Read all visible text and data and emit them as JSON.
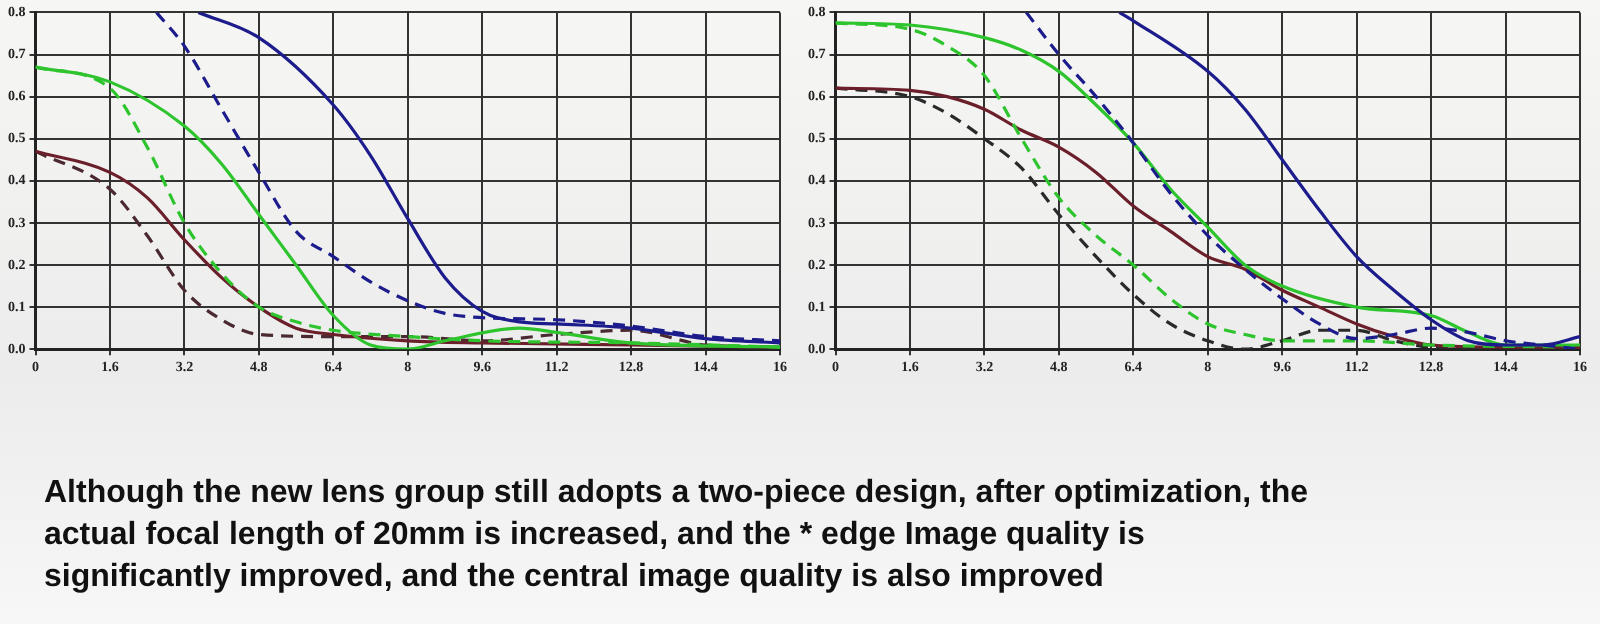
{
  "chart_data": [
    {
      "type": "line",
      "xlim": [
        0,
        16
      ],
      "xticks": [
        {
          "value": 0,
          "label": "0"
        },
        {
          "value": 1.6,
          "label": "1.6"
        },
        {
          "value": 3.2,
          "label": "3.2"
        },
        {
          "value": 4.8,
          "label": "4.8"
        },
        {
          "value": 6.4,
          "label": "6.4"
        },
        {
          "value": 8,
          "label": "8"
        },
        {
          "value": 9.6,
          "label": "9.6"
        },
        {
          "value": 11.2,
          "label": "11.2"
        },
        {
          "value": 12.8,
          "label": "12.8"
        },
        {
          "value": 14.4,
          "label": "14.4"
        },
        {
          "value": 16,
          "label": "16"
        }
      ],
      "ylim": [
        0,
        0.8
      ],
      "yticks": [
        {
          "value": 0,
          "label": "0.0"
        },
        {
          "value": 0.1,
          "label": "0.1"
        },
        {
          "value": 0.2,
          "label": "0.2"
        },
        {
          "value": 0.3,
          "label": "0.3"
        },
        {
          "value": 0.4,
          "label": "0.4"
        },
        {
          "value": 0.5,
          "label": "0.5"
        },
        {
          "value": 0.6,
          "label": "0.6"
        },
        {
          "value": 0.7,
          "label": "0.7"
        },
        {
          "value": 0.8,
          "label": "0.8"
        }
      ],
      "grid": true,
      "legend": false,
      "marker": "none",
      "series": [
        {
          "color": "#1c1c8c",
          "line_style": "solid",
          "x": [
            3.5,
            4.8,
            6.4,
            7.2,
            8,
            8.8,
            9.6,
            10.4,
            11.2,
            12.8,
            14.4,
            16
          ],
          "values": [
            0.8,
            0.74,
            0.58,
            0.46,
            0.31,
            0.17,
            0.09,
            0.065,
            0.06,
            0.05,
            0.025,
            0.015
          ]
        },
        {
          "color": "#1c1c8c",
          "line_style": "dashed",
          "x": [
            2.6,
            3.2,
            4.0,
            4.8,
            5.6,
            6.4,
            7.2,
            8,
            8.8,
            9.6,
            11.2,
            12.8,
            14.4,
            16
          ],
          "values": [
            0.8,
            0.72,
            0.57,
            0.42,
            0.28,
            0.22,
            0.16,
            0.115,
            0.085,
            0.075,
            0.07,
            0.055,
            0.03,
            0.02
          ]
        },
        {
          "color": "#2ec42e",
          "line_style": "solid",
          "x": [
            0,
            1.6,
            3.2,
            4.0,
            4.8,
            5.6,
            6.4,
            7.2,
            8,
            8.8,
            10.4,
            11.2,
            12.8,
            16
          ],
          "values": [
            0.67,
            0.635,
            0.53,
            0.44,
            0.32,
            0.2,
            0.08,
            0.01,
            0,
            0.02,
            0.05,
            0.04,
            0.015,
            0.005
          ]
        },
        {
          "color": "#2ec42e",
          "line_style": "dashed",
          "x": [
            0,
            1.6,
            2.4,
            3.2,
            4.0,
            4.8,
            5.6,
            6.4,
            8,
            9.6,
            12.8,
            16
          ],
          "values": [
            0.67,
            0.62,
            0.48,
            0.3,
            0.18,
            0.1,
            0.065,
            0.045,
            0.03,
            0.02,
            0.015,
            0.005
          ]
        },
        {
          "color": "#6b1f2a",
          "line_style": "solid",
          "x": [
            0,
            1.6,
            2.4,
            3.2,
            4.0,
            4.8,
            5.6,
            6.4,
            8,
            9.6,
            12.8,
            16
          ],
          "values": [
            0.47,
            0.42,
            0.36,
            0.26,
            0.17,
            0.1,
            0.05,
            0.035,
            0.02,
            0.015,
            0.01,
            0.005
          ]
        },
        {
          "color": "#4a2a30",
          "line_style": "dashed",
          "x": [
            0,
            1.6,
            2.4,
            3.2,
            4.0,
            4.8,
            6.4,
            8,
            9.6,
            11.2,
            12.8,
            14.4,
            16
          ],
          "values": [
            0.47,
            0.38,
            0.27,
            0.14,
            0.07,
            0.035,
            0.03,
            0.03,
            0.02,
            0.035,
            0.045,
            0.01,
            0.005
          ]
        }
      ],
      "annotations": [
        "Although the new lens group still adopts a two-piece design, after optimization, the actual focal length of 20mm is increased, and the * edge Image quality is significantly improved, and the central image quality is also improved"
      ]
    },
    {
      "type": "line",
      "xlim": [
        0,
        16
      ],
      "xticks": [
        {
          "value": 0,
          "label": "0"
        },
        {
          "value": 1.6,
          "label": "1.6"
        },
        {
          "value": 3.2,
          "label": "3.2"
        },
        {
          "value": 4.8,
          "label": "4.8"
        },
        {
          "value": 6.4,
          "label": "6.4"
        },
        {
          "value": 8,
          "label": "8"
        },
        {
          "value": 9.6,
          "label": "9.6"
        },
        {
          "value": 11.2,
          "label": "11.2"
        },
        {
          "value": 12.8,
          "label": "12.8"
        },
        {
          "value": 14.4,
          "label": "14.4"
        },
        {
          "value": 16,
          "label": "16"
        }
      ],
      "ylim": [
        0,
        0.8
      ],
      "yticks": [
        {
          "value": 0,
          "label": "0.0"
        },
        {
          "value": 0.1,
          "label": "0.1"
        },
        {
          "value": 0.2,
          "label": "0.2"
        },
        {
          "value": 0.3,
          "label": "0.3"
        },
        {
          "value": 0.4,
          "label": "0.4"
        },
        {
          "value": 0.5,
          "label": "0.5"
        },
        {
          "value": 0.6,
          "label": "0.6"
        },
        {
          "value": 0.7,
          "label": "0.7"
        },
        {
          "value": 0.8,
          "label": "0.8"
        }
      ],
      "grid": true,
      "legend": false,
      "marker": "none",
      "series": [
        {
          "color": "#1c1c8c",
          "line_style": "solid",
          "x": [
            6.1,
            6.4,
            8,
            8.8,
            9.6,
            10.4,
            11.2,
            12,
            12.8,
            13.6,
            14.4,
            15.2,
            16
          ],
          "values": [
            0.8,
            0.78,
            0.66,
            0.57,
            0.45,
            0.33,
            0.22,
            0.14,
            0.07,
            0.02,
            0.01,
            0.01,
            0.03
          ]
        },
        {
          "color": "#1c1c8c",
          "line_style": "dashed",
          "x": [
            4.1,
            4.8,
            5.6,
            6.4,
            7.2,
            8,
            8.8,
            9.6,
            10.4,
            11.2,
            12,
            12.8,
            13.6,
            14.4,
            15.2,
            16
          ],
          "values": [
            0.8,
            0.7,
            0.6,
            0.49,
            0.37,
            0.27,
            0.19,
            0.12,
            0.06,
            0.025,
            0.035,
            0.05,
            0.04,
            0.02,
            0.01,
            0
          ]
        },
        {
          "color": "#2ec42e",
          "line_style": "solid",
          "x": [
            0,
            1.6,
            3.2,
            4.0,
            4.8,
            5.6,
            6.4,
            7.2,
            8,
            8.8,
            9.6,
            11.2,
            12.8,
            13.6,
            14.4,
            16
          ],
          "values": [
            0.775,
            0.77,
            0.74,
            0.71,
            0.66,
            0.58,
            0.49,
            0.38,
            0.29,
            0.2,
            0.15,
            0.1,
            0.08,
            0.04,
            0.01,
            0.01
          ]
        },
        {
          "color": "#2ec42e",
          "line_style": "dashed",
          "x": [
            0,
            1.6,
            2.4,
            3.2,
            4.0,
            4.8,
            5.6,
            6.4,
            7.2,
            8,
            8.8,
            9.6,
            11.2,
            12.8,
            16
          ],
          "values": [
            0.775,
            0.76,
            0.72,
            0.65,
            0.5,
            0.36,
            0.27,
            0.2,
            0.12,
            0.06,
            0.035,
            0.02,
            0.02,
            0.01,
            0.005
          ]
        },
        {
          "color": "#6b1f2a",
          "line_style": "solid",
          "x": [
            0,
            1.6,
            2.4,
            3.2,
            4.0,
            4.8,
            5.6,
            6.4,
            7.2,
            8,
            8.8,
            9.6,
            10.4,
            11.2,
            12,
            12.8,
            14.4,
            16
          ],
          "values": [
            0.62,
            0.615,
            0.6,
            0.57,
            0.52,
            0.48,
            0.42,
            0.34,
            0.28,
            0.22,
            0.19,
            0.14,
            0.1,
            0.06,
            0.03,
            0.01,
            0.005,
            0.005
          ]
        },
        {
          "color": "#2a2a2a",
          "line_style": "dashed",
          "x": [
            0,
            1.6,
            2.4,
            3.2,
            4.0,
            4.8,
            5.6,
            6.4,
            7.2,
            8,
            8.8,
            9.6,
            10.4,
            11.2,
            12,
            12.8,
            16
          ],
          "values": [
            0.62,
            0.6,
            0.56,
            0.5,
            0.43,
            0.32,
            0.22,
            0.13,
            0.06,
            0.02,
            0,
            0.02,
            0.045,
            0.045,
            0.02,
            0.005,
            0
          ]
        }
      ]
    }
  ]
}
